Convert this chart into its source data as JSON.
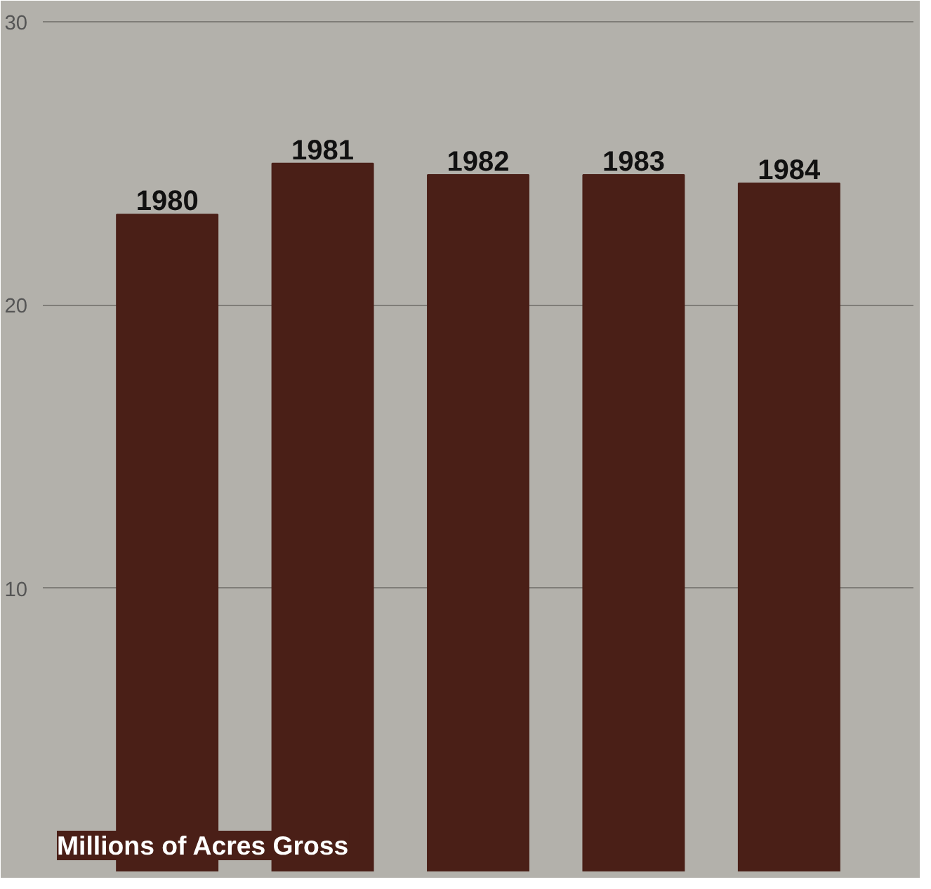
{
  "chart_data": {
    "type": "bar",
    "ylabel": "Millions of Acres Gross",
    "categories": [
      "1980",
      "1981",
      "1982",
      "1983",
      "1984"
    ],
    "values": [
      23.2,
      25.0,
      24.6,
      24.6,
      24.3
    ],
    "color": "#4a1f17",
    "ylim": [
      0,
      30.5
    ],
    "yticks": [
      10,
      20,
      30
    ],
    "grid": "y"
  }
}
